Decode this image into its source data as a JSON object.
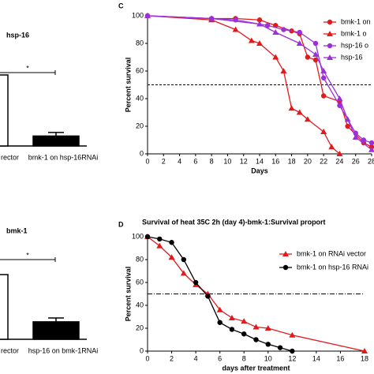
{
  "chart_data": [
    {
      "type": "bar",
      "title": "hsp-16",
      "categories": [
        "rector",
        "bmk-1 on hsp-16RNAi"
      ],
      "values": [
        100,
        14
      ],
      "errors": [
        null,
        5
      ],
      "colors": [
        "#ffffff",
        "#000000"
      ],
      "ylim": [
        0,
        100
      ],
      "annotation": "*"
    },
    {
      "type": "bar",
      "title": "bmk-1",
      "categories": [
        "rector",
        "hsp-16 on bmk-1RNAi"
      ],
      "values": [
        100,
        27
      ],
      "errors": [
        null,
        6
      ],
      "colors": [
        "#ffffff",
        "#000000"
      ],
      "ylim": [
        0,
        100
      ],
      "annotation": "*"
    },
    {
      "type": "line",
      "panel": "C",
      "xlabel": "Days",
      "ylabel": "Percent survival",
      "xlim": [
        0,
        28
      ],
      "ylim": [
        0,
        100
      ],
      "xticks": [
        0,
        2,
        4,
        6,
        8,
        10,
        12,
        14,
        16,
        18,
        20,
        22,
        24,
        26,
        28
      ],
      "yticks": [
        0,
        20,
        40,
        60,
        80,
        100
      ],
      "reference": 50,
      "series": [
        {
          "name": "bmk-1 on",
          "color": "#e31a1c",
          "marker": "circle",
          "x": [
            0,
            8,
            11,
            14,
            16,
            18,
            19,
            20,
            21,
            22,
            24,
            25,
            27,
            28
          ],
          "values": [
            100,
            98,
            98,
            97,
            93,
            89,
            87,
            70,
            68,
            42,
            38,
            20,
            8,
            5
          ]
        },
        {
          "name": "bmk-1 o",
          "color": "#e31a1c",
          "marker": "triangle",
          "x": [
            0,
            8,
            11,
            13,
            14,
            16,
            17,
            18,
            19,
            20,
            22,
            23,
            24
          ],
          "values": [
            100,
            97,
            90,
            82,
            80,
            70,
            60,
            33,
            30,
            25,
            16,
            5,
            0
          ]
        },
        {
          "name": "hsp-16 o",
          "color": "#9b30d9",
          "marker": "circle",
          "x": [
            0,
            8,
            11,
            15,
            17,
            19,
            21,
            22,
            24,
            26,
            27,
            28
          ],
          "values": [
            100,
            98,
            97,
            93,
            90,
            88,
            80,
            55,
            35,
            15,
            10,
            8
          ]
        },
        {
          "name": "hsp-16",
          "color": "#9b30d9",
          "marker": "triangle",
          "x": [
            0,
            8,
            14,
            16,
            19,
            21,
            22,
            24,
            25,
            26,
            28
          ],
          "values": [
            100,
            98,
            94,
            88,
            80,
            72,
            60,
            40,
            25,
            12,
            3
          ]
        }
      ]
    },
    {
      "type": "line",
      "panel": "D",
      "title": "Survival of heat 35C 2h (day 4)-bmk-1:Survival proport",
      "xlabel": "days after treatment",
      "ylabel": "Percent survival",
      "xlim": [
        0,
        18
      ],
      "ylim": [
        0,
        100
      ],
      "xticks": [
        0,
        2,
        4,
        6,
        8,
        10,
        12,
        14,
        16,
        18
      ],
      "yticks": [
        0,
        20,
        40,
        60,
        80,
        100
      ],
      "reference": 50,
      "series": [
        {
          "name": "bmk-1 on RNAi vector",
          "color": "#e31a1c",
          "marker": "triangle",
          "x": [
            0,
            1,
            2,
            3,
            4,
            5,
            6,
            7,
            8,
            9,
            10,
            12,
            18
          ],
          "values": [
            100,
            92,
            82,
            68,
            58,
            50,
            36,
            29,
            26,
            21,
            20,
            14,
            0
          ]
        },
        {
          "name": "bmk-1 on hsp-16 RNAi",
          "color": "#000000",
          "marker": "circle",
          "x": [
            0,
            1,
            2,
            3,
            4,
            5,
            6,
            7,
            8,
            9,
            10,
            11,
            12
          ],
          "values": [
            100,
            98,
            95,
            80,
            60,
            48,
            25,
            19,
            15,
            10,
            6,
            3,
            0
          ]
        }
      ]
    }
  ]
}
